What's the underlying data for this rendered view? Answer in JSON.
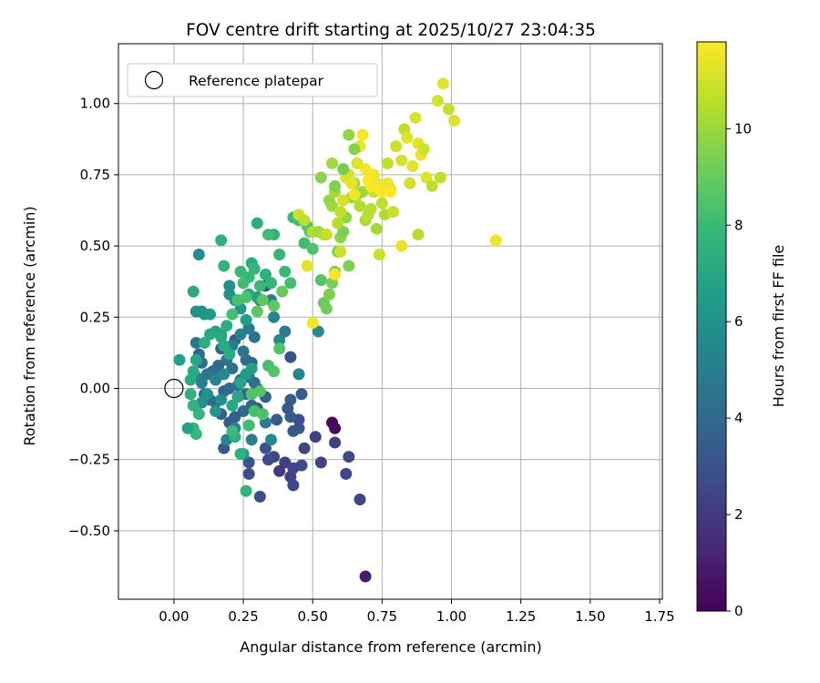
{
  "chart_data": {
    "type": "scatter",
    "title": "FOV centre drift starting at 2025/10/27 23:04:35",
    "xlabel": "Angular distance from reference (arcmin)",
    "ylabel": "Rotation from reference (arcmin)",
    "xlim": [
      -0.2,
      1.76
    ],
    "ylim": [
      -0.74,
      1.21
    ],
    "xticks": [
      "0.00",
      "0.25",
      "0.50",
      "0.75",
      "1.00",
      "1.25",
      "1.50",
      "1.75"
    ],
    "yticks": [
      "−0.50",
      "−0.25",
      "0.00",
      "0.25",
      "0.50",
      "0.75",
      "1.00"
    ],
    "grid": true,
    "legend": {
      "position": "top-left",
      "entries": [
        "Reference platepar"
      ]
    },
    "reference_point": {
      "x": 0.0,
      "y": 0.0
    },
    "colorbar": {
      "label": "Hours from first FF file",
      "min": 0,
      "max": 11.8,
      "ticks": [
        "0",
        "2",
        "4",
        "6",
        "8",
        "10"
      ],
      "colormap": [
        "#440154",
        "#482878",
        "#3e4989",
        "#31688e",
        "#26828e",
        "#1f9e89",
        "#35b779",
        "#6ece58",
        "#b5de2b",
        "#fde725"
      ]
    },
    "points": [
      [
        0.69,
        -0.66,
        1.0
      ],
      [
        0.57,
        -0.12,
        0.3
      ],
      [
        0.58,
        -0.14,
        0.4
      ],
      [
        0.67,
        -0.39,
        2.5
      ],
      [
        0.62,
        -0.3,
        2.6
      ],
      [
        0.63,
        -0.24,
        2.7
      ],
      [
        0.58,
        -0.19,
        2.3
      ],
      [
        0.53,
        -0.26,
        2.4
      ],
      [
        0.51,
        -0.17,
        2.3
      ],
      [
        0.47,
        -0.21,
        2.5
      ],
      [
        0.42,
        -0.31,
        2.4
      ],
      [
        0.43,
        -0.34,
        2.6
      ],
      [
        0.4,
        -0.26,
        2.2
      ],
      [
        0.38,
        -0.29,
        2.0
      ],
      [
        0.36,
        -0.24,
        2.6
      ],
      [
        0.34,
        -0.25,
        2.8
      ],
      [
        0.33,
        -0.21,
        3.0
      ],
      [
        0.31,
        -0.38,
        2.9
      ],
      [
        0.27,
        -0.3,
        2.8
      ],
      [
        0.27,
        -0.26,
        3.1
      ],
      [
        0.46,
        -0.27,
        2.7
      ],
      [
        0.43,
        -0.28,
        2.5
      ],
      [
        0.45,
        -0.14,
        3.1
      ],
      [
        0.45,
        -0.11,
        2.9
      ],
      [
        0.43,
        -0.15,
        3.2
      ],
      [
        0.42,
        -0.04,
        3.4
      ],
      [
        0.41,
        -0.07,
        3.3
      ],
      [
        0.42,
        0.11,
        3.0
      ],
      [
        0.46,
        -0.02,
        3.3
      ],
      [
        0.42,
        -0.1,
        3.5
      ],
      [
        0.37,
        -0.11,
        3.4
      ],
      [
        0.33,
        -0.03,
        3.6
      ],
      [
        0.3,
        -0.07,
        3.5
      ],
      [
        0.28,
        -0.06,
        3.8
      ],
      [
        0.25,
        -0.08,
        4.0
      ],
      [
        0.22,
        -0.1,
        3.6
      ],
      [
        0.18,
        -0.21,
        3.3
      ],
      [
        0.2,
        -0.12,
        3.4
      ],
      [
        0.17,
        -0.09,
        3.7
      ],
      [
        0.15,
        -0.05,
        3.9
      ],
      [
        0.13,
        -0.04,
        4.1
      ],
      [
        0.11,
        -0.02,
        4.3
      ],
      [
        0.18,
        -0.01,
        3.8
      ],
      [
        0.2,
        0.0,
        4.2
      ],
      [
        0.23,
        0.01,
        4.4
      ],
      [
        0.24,
        0.03,
        3.9
      ],
      [
        0.26,
        -0.02,
        4.0
      ],
      [
        0.27,
        0.04,
        4.2
      ],
      [
        0.29,
        0.02,
        4.3
      ],
      [
        0.3,
        0.0,
        4.6
      ],
      [
        0.28,
        0.09,
        3.8
      ],
      [
        0.26,
        0.1,
        4.1
      ],
      [
        0.25,
        0.13,
        4.5
      ],
      [
        0.22,
        0.17,
        3.5
      ],
      [
        0.21,
        0.07,
        4.4
      ],
      [
        0.19,
        0.1,
        4.6
      ],
      [
        0.17,
        0.14,
        3.6
      ],
      [
        0.16,
        0.08,
        4.0
      ],
      [
        0.14,
        0.06,
        4.3
      ],
      [
        0.12,
        0.05,
        4.7
      ],
      [
        0.1,
        0.09,
        4.4
      ],
      [
        0.09,
        0.12,
        3.9
      ],
      [
        0.08,
        0.16,
        4.6
      ],
      [
        0.08,
        0.04,
        5.3
      ],
      [
        0.1,
        0.02,
        5.0
      ],
      [
        0.15,
        0.03,
        5.4
      ],
      [
        0.18,
        0.05,
        5.6
      ],
      [
        0.21,
        0.15,
        5.1
      ],
      [
        0.24,
        0.19,
        5.3
      ],
      [
        0.27,
        0.21,
        4.8
      ],
      [
        0.29,
        0.18,
        4.5
      ],
      [
        0.31,
        0.31,
        4.7
      ],
      [
        0.33,
        0.36,
        3.4
      ],
      [
        0.35,
        0.31,
        5.2
      ],
      [
        0.36,
        0.25,
        5.5
      ],
      [
        0.38,
        0.17,
        5.7
      ],
      [
        0.4,
        0.2,
        4.8
      ],
      [
        0.52,
        0.2,
        5.6
      ],
      [
        0.45,
        0.05,
        5.4
      ],
      [
        0.33,
        -0.12,
        5.0
      ],
      [
        0.35,
        -0.18,
        5.6
      ],
      [
        0.28,
        -0.18,
        5.1
      ],
      [
        0.27,
        -0.13,
        6.0
      ],
      [
        0.25,
        -0.23,
        6.3
      ],
      [
        0.22,
        -0.14,
        5.2
      ],
      [
        0.19,
        -0.18,
        5.5
      ],
      [
        0.17,
        -0.04,
        5.8
      ],
      [
        0.15,
        -0.08,
        6.2
      ],
      [
        0.12,
        -0.02,
        6.0
      ],
      [
        0.1,
        -0.05,
        5.9
      ],
      [
        0.09,
        0.47,
        5.8
      ],
      [
        0.1,
        0.27,
        5.7
      ],
      [
        0.08,
        0.27,
        5.9
      ],
      [
        0.11,
        0.26,
        6.1
      ],
      [
        0.13,
        0.26,
        6.4
      ],
      [
        0.2,
        0.33,
        6.0
      ],
      [
        0.2,
        0.36,
        5.9
      ],
      [
        0.22,
        0.31,
        6.1
      ],
      [
        0.24,
        0.28,
        6.3
      ],
      [
        0.26,
        0.24,
        6.6
      ],
      [
        0.27,
        0.33,
        7.0
      ],
      [
        0.3,
        0.32,
        6.8
      ],
      [
        0.28,
        0.07,
        6.7
      ],
      [
        0.26,
        0.05,
        6.5
      ],
      [
        0.24,
        0.02,
        6.9
      ],
      [
        0.23,
        -0.03,
        7.0
      ],
      [
        0.21,
        -0.06,
        7.1
      ],
      [
        0.2,
        0.12,
        7.2
      ],
      [
        0.18,
        0.15,
        7.3
      ],
      [
        0.17,
        0.19,
        6.7
      ],
      [
        0.15,
        0.2,
        6.8
      ],
      [
        0.13,
        0.19,
        7.2
      ],
      [
        0.11,
        0.16,
        7.4
      ],
      [
        0.08,
        0.1,
        7.0
      ],
      [
        0.07,
        0.06,
        7.2
      ],
      [
        0.06,
        0.03,
        7.3
      ],
      [
        0.06,
        -0.02,
        7.5
      ],
      [
        0.07,
        -0.06,
        7.6
      ],
      [
        0.09,
        -0.09,
        7.8
      ],
      [
        0.07,
        -0.14,
        7.7
      ],
      [
        0.08,
        -0.16,
        7.9
      ],
      [
        0.05,
        -0.14,
        6.8
      ],
      [
        0.02,
        0.1,
        6.7
      ],
      [
        0.07,
        0.34,
        7.2
      ],
      [
        0.17,
        0.52,
        7.6
      ],
      [
        0.18,
        0.43,
        7.7
      ],
      [
        0.24,
        0.41,
        7.9
      ],
      [
        0.28,
        0.44,
        7.3
      ],
      [
        0.3,
        0.58,
        7.4
      ],
      [
        0.33,
        0.4,
        7.5
      ],
      [
        0.35,
        0.37,
        7.7
      ],
      [
        0.36,
        0.54,
        7.6
      ],
      [
        0.38,
        0.47,
        7.8
      ],
      [
        0.4,
        0.41,
        7.9
      ],
      [
        0.42,
        0.37,
        8.2
      ],
      [
        0.43,
        0.6,
        8.0
      ],
      [
        0.45,
        0.59,
        8.3
      ],
      [
        0.47,
        0.51,
        8.1
      ],
      [
        0.48,
        0.57,
        8.4
      ],
      [
        0.49,
        0.55,
        8.6
      ],
      [
        0.5,
        0.49,
        8.5
      ],
      [
        0.34,
        0.54,
        8.1
      ],
      [
        0.31,
        0.36,
        8.0
      ],
      [
        0.29,
        0.42,
        7.8
      ],
      [
        0.27,
        0.39,
        7.9
      ],
      [
        0.25,
        0.37,
        8.1
      ],
      [
        0.23,
        0.31,
        8.3
      ],
      [
        0.21,
        0.26,
        8.2
      ],
      [
        0.19,
        0.22,
        7.4
      ],
      [
        0.17,
        0.18,
        7.1
      ],
      [
        0.22,
        -0.17,
        7.4
      ],
      [
        0.21,
        -0.15,
        8.0
      ],
      [
        0.24,
        -0.23,
        7.5
      ],
      [
        0.26,
        -0.36,
        7.7
      ],
      [
        0.27,
        -0.13,
        8.2
      ],
      [
        0.29,
        -0.08,
        8.3
      ],
      [
        0.28,
        -0.02,
        8.5
      ],
      [
        0.31,
        -0.01,
        8.6
      ],
      [
        0.32,
        -0.09,
        8.4
      ],
      [
        0.34,
        0.08,
        8.3
      ],
      [
        0.36,
        0.06,
        8.6
      ],
      [
        0.38,
        0.14,
        8.5
      ],
      [
        0.26,
        0.32,
        8.4
      ],
      [
        0.3,
        0.27,
        8.7
      ],
      [
        0.32,
        0.31,
        8.8
      ],
      [
        0.36,
        0.29,
        8.9
      ],
      [
        0.39,
        0.34,
        9.0
      ],
      [
        0.53,
        0.38,
        8.6
      ],
      [
        0.54,
        0.3,
        9.0
      ],
      [
        0.55,
        0.28,
        9.2
      ],
      [
        0.56,
        0.33,
        9.4
      ],
      [
        0.57,
        0.37,
        9.3
      ],
      [
        0.58,
        0.41,
        9.5
      ],
      [
        0.59,
        0.48,
        9.6
      ],
      [
        0.6,
        0.53,
        9.7
      ],
      [
        0.61,
        0.55,
        9.4
      ],
      [
        0.62,
        0.6,
        9.8
      ],
      [
        0.63,
        0.43,
        9.5
      ],
      [
        0.64,
        0.67,
        9.9
      ],
      [
        0.65,
        0.72,
        10.1
      ],
      [
        0.66,
        0.68,
        10.2
      ],
      [
        0.67,
        0.64,
        10.4
      ],
      [
        0.68,
        0.69,
        10.0
      ],
      [
        0.69,
        0.59,
        10.3
      ],
      [
        0.7,
        0.61,
        10.6
      ],
      [
        0.71,
        0.63,
        10.5
      ],
      [
        0.72,
        0.69,
        10.8
      ],
      [
        0.73,
        0.56,
        10.2
      ],
      [
        0.74,
        0.47,
        10.9
      ],
      [
        0.75,
        0.65,
        10.7
      ],
      [
        0.76,
        0.61,
        10.4
      ],
      [
        0.77,
        0.79,
        10.6
      ],
      [
        0.78,
        0.7,
        11.0
      ],
      [
        0.79,
        0.62,
        10.8
      ],
      [
        0.8,
        0.85,
        10.9
      ],
      [
        0.82,
        0.8,
        11.1
      ],
      [
        0.83,
        0.91,
        10.7
      ],
      [
        0.84,
        0.88,
        11.2
      ],
      [
        0.85,
        0.72,
        11.0
      ],
      [
        0.86,
        0.78,
        11.3
      ],
      [
        0.87,
        0.95,
        11.1
      ],
      [
        0.88,
        0.86,
        11.4
      ],
      [
        0.89,
        0.82,
        11.5
      ],
      [
        0.9,
        0.84,
        10.9
      ],
      [
        0.91,
        0.74,
        11.2
      ],
      [
        0.93,
        0.71,
        10.6
      ],
      [
        0.95,
        1.01,
        11.0
      ],
      [
        0.96,
        0.74,
        10.7
      ],
      [
        0.97,
        1.07,
        11.3
      ],
      [
        0.99,
        0.98,
        10.8
      ],
      [
        1.01,
        0.94,
        11.2
      ],
      [
        0.88,
        0.54,
        10.5
      ],
      [
        0.82,
        0.5,
        11.4
      ],
      [
        1.16,
        0.52,
        11.5
      ],
      [
        0.45,
        0.61,
        10.9
      ],
      [
        0.47,
        0.59,
        10.6
      ],
      [
        0.5,
        0.55,
        10.4
      ],
      [
        0.52,
        0.55,
        10.1
      ],
      [
        0.54,
        0.54,
        10.3
      ],
      [
        0.56,
        0.66,
        9.9
      ],
      [
        0.57,
        0.64,
        10.0
      ],
      [
        0.58,
        0.69,
        10.2
      ],
      [
        0.59,
        0.58,
        10.5
      ],
      [
        0.6,
        0.62,
        10.7
      ],
      [
        0.61,
        0.66,
        11.0
      ],
      [
        0.62,
        0.74,
        11.3
      ],
      [
        0.63,
        0.75,
        11.1
      ],
      [
        0.64,
        0.72,
        11.4
      ],
      [
        0.65,
        0.68,
        11.6
      ],
      [
        0.66,
        0.79,
        11.2
      ],
      [
        0.67,
        0.85,
        11.5
      ],
      [
        0.68,
        0.89,
        11.7
      ],
      [
        0.69,
        0.77,
        11.6
      ],
      [
        0.7,
        0.73,
        11.8
      ],
      [
        0.71,
        0.71,
        11.7
      ],
      [
        0.72,
        0.75,
        11.6
      ],
      [
        0.73,
        0.72,
        11.5
      ],
      [
        0.74,
        0.7,
        11.8
      ],
      [
        0.75,
        0.69,
        11.7
      ],
      [
        0.76,
        0.7,
        11.6
      ],
      [
        0.77,
        0.72,
        11.5
      ],
      [
        0.78,
        0.69,
        11.8
      ],
      [
        0.58,
        0.4,
        11.7
      ],
      [
        0.5,
        0.23,
        11.6
      ],
      [
        0.48,
        0.43,
        11.4
      ],
      [
        0.55,
        0.54,
        10.8
      ],
      [
        0.6,
        0.48,
        10.9
      ],
      [
        0.63,
        0.89,
        9.8
      ],
      [
        0.65,
        0.84,
        9.6
      ],
      [
        0.57,
        0.79,
        10.1
      ],
      [
        0.53,
        0.74,
        9.7
      ],
      [
        0.58,
        0.71,
        9.5
      ],
      [
        0.61,
        0.77,
        9.3
      ]
    ]
  }
}
